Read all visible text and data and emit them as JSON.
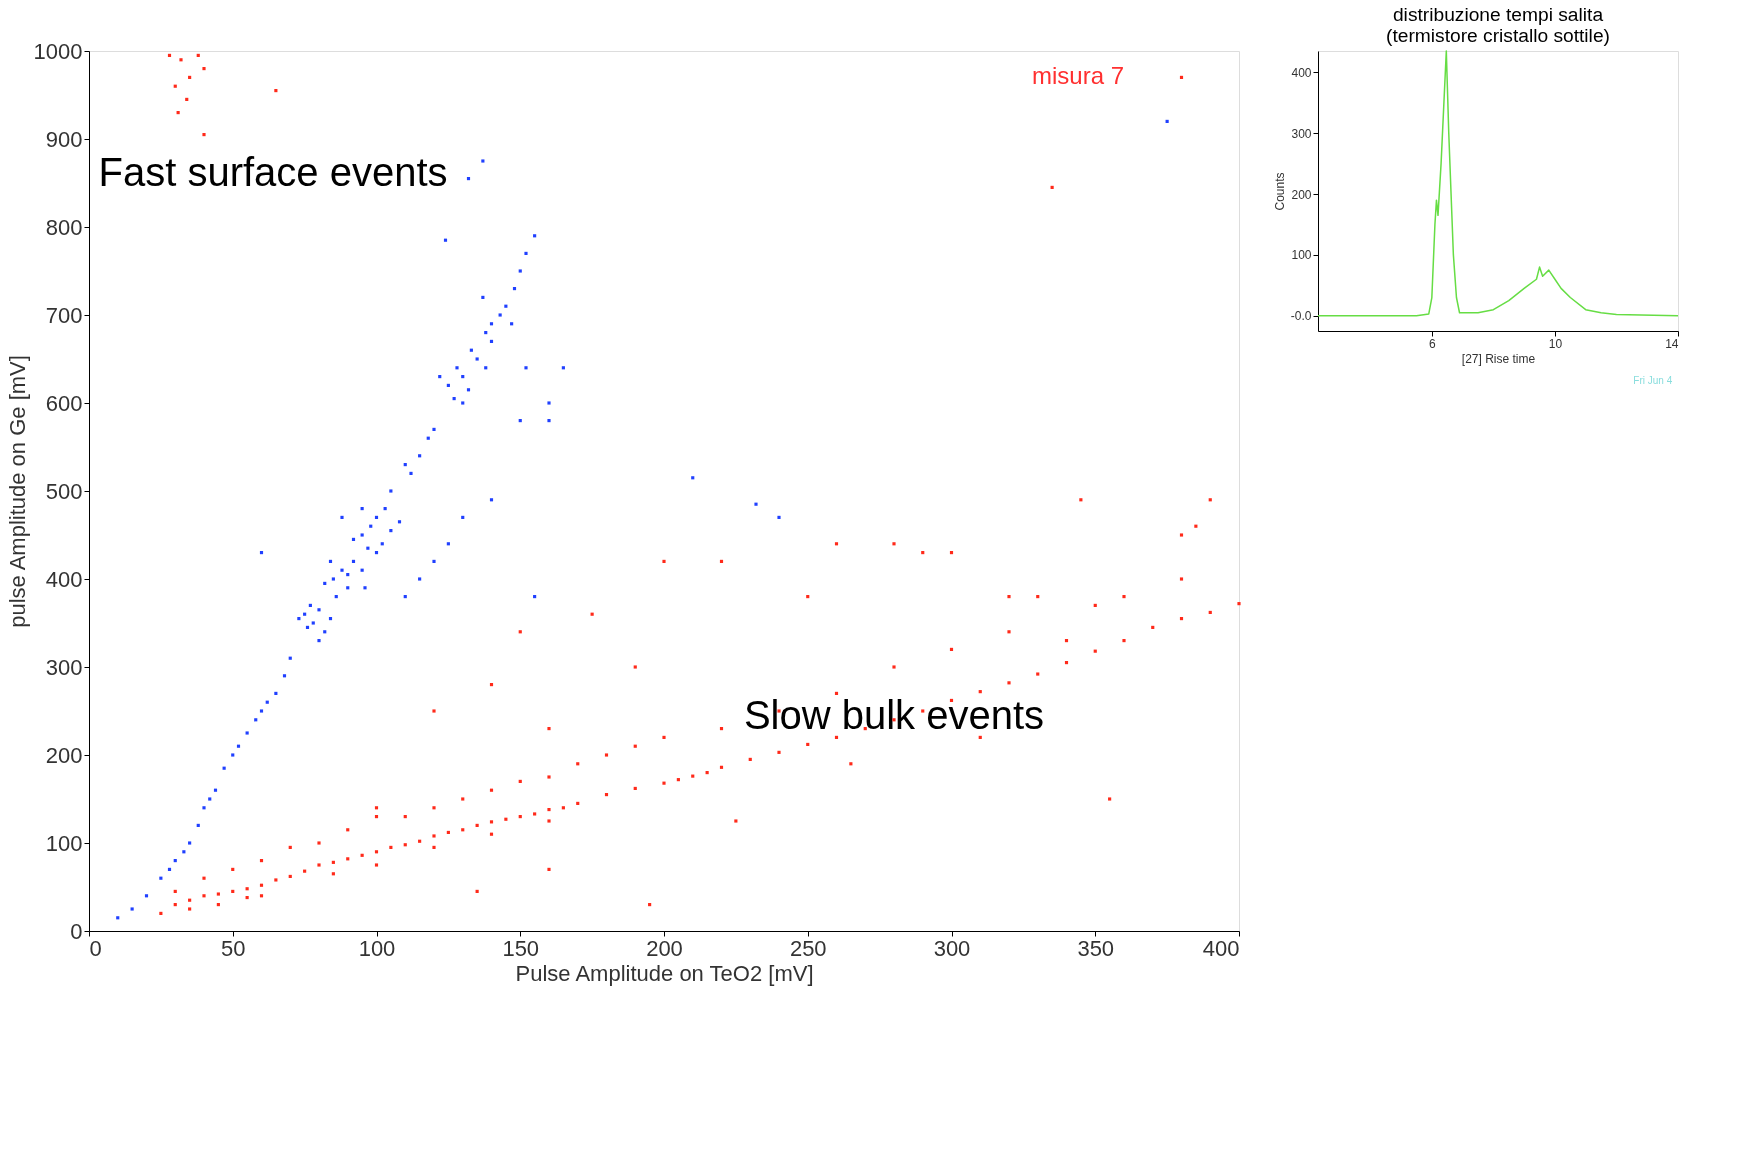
{
  "chart_data": [
    {
      "type": "scatter",
      "xlabel": "Pulse Amplitude on TeO2 [mV]",
      "ylabel": "pulse Amplitude on Ge [mV]",
      "marker": "square",
      "xlim": [
        0,
        400
      ],
      "ylim": [
        0,
        1000
      ],
      "xticks": [
        0,
        50,
        100,
        150,
        200,
        250,
        300,
        350,
        400
      ],
      "yticks": [
        0,
        100,
        200,
        300,
        400,
        500,
        600,
        700,
        800,
        900,
        1000
      ],
      "grid": false,
      "annotations": [
        "Fast surface events",
        "Slow bulk events",
        "misura 7"
      ],
      "series": [
        {
          "color": "#2040ff",
          "x": [
            125,
            128,
            130,
            132,
            135,
            127,
            133,
            138,
            122,
            130,
            140,
            140,
            145,
            148,
            150,
            143,
            152,
            147,
            138,
            155,
            137,
            124,
            132,
            137,
            152,
            160,
            165,
            150,
            110,
            115,
            118,
            120,
            105,
            112,
            160,
            95,
            98,
            100,
            102,
            105,
            97,
            92,
            108,
            103,
            100,
            85,
            88,
            90,
            92,
            86,
            95,
            82,
            90,
            96,
            84,
            75,
            78,
            80,
            82,
            77,
            73,
            84,
            80,
            76,
            70,
            68,
            65,
            60,
            58,
            55,
            50,
            47,
            44,
            40,
            38,
            35,
            30,
            25,
            20,
            15,
            10,
            42,
            52,
            62,
            33,
            28,
            120,
            125,
            130,
            140,
            155,
            115,
            60,
            110,
            95,
            88,
            240,
            375,
            232,
            210
          ],
          "values": [
            620,
            640,
            630,
            615,
            650,
            605,
            660,
            640,
            630,
            600,
            670,
            690,
            710,
            730,
            750,
            700,
            770,
            690,
            680,
            790,
            720,
            785,
            855,
            875,
            640,
            600,
            640,
            580,
            530,
            540,
            560,
            570,
            500,
            520,
            580,
            450,
            460,
            470,
            440,
            455,
            435,
            445,
            465,
            480,
            430,
            400,
            410,
            390,
            420,
            380,
            410,
            395,
            405,
            390,
            420,
            360,
            350,
            365,
            340,
            370,
            355,
            355,
            330,
            345,
            310,
            290,
            270,
            250,
            240,
            225,
            200,
            185,
            160,
            140,
            120,
            100,
            80,
            60,
            40,
            25,
            15,
            150,
            210,
            260,
            90,
            70,
            420,
            440,
            470,
            490,
            380,
            400,
            430,
            380,
            480,
            470,
            470,
            920,
            485,
            515
          ]
        },
        {
          "color": "#ff2a1a",
          "x": [
            25,
            30,
            35,
            40,
            45,
            50,
            55,
            60,
            65,
            70,
            75,
            80,
            85,
            90,
            95,
            100,
            105,
            110,
            115,
            120,
            125,
            130,
            135,
            140,
            145,
            150,
            155,
            160,
            165,
            170,
            180,
            190,
            200,
            205,
            210,
            215,
            220,
            230,
            240,
            250,
            260,
            270,
            280,
            290,
            300,
            310,
            320,
            330,
            340,
            350,
            360,
            370,
            380,
            390,
            400,
            35,
            45,
            55,
            60,
            85,
            100,
            120,
            140,
            160,
            30,
            40,
            50,
            60,
            70,
            80,
            90,
            100,
            110,
            120,
            130,
            140,
            150,
            160,
            170,
            180,
            190,
            200,
            220,
            240,
            260,
            280,
            300,
            320,
            350,
            380,
            150,
            175,
            200,
            220,
            250,
            260,
            280,
            300,
            320,
            330,
            340,
            360,
            380,
            385,
            390,
            345,
            290,
            190,
            160,
            140,
            120,
            100,
            195,
            160,
            135,
            225,
            310,
            355,
            265,
            30,
            32,
            35,
            28,
            38,
            34,
            31,
            40,
            65,
            335,
            380,
            40
          ],
          "values": [
            20,
            30,
            35,
            40,
            42,
            45,
            48,
            52,
            58,
            62,
            68,
            75,
            78,
            82,
            86,
            90,
            95,
            98,
            102,
            108,
            112,
            115,
            120,
            124,
            127,
            130,
            133,
            138,
            140,
            145,
            155,
            162,
            168,
            172,
            176,
            180,
            186,
            195,
            203,
            212,
            220,
            230,
            240,
            250,
            262,
            272,
            282,
            292,
            305,
            318,
            330,
            345,
            355,
            362,
            372,
            25,
            30,
            38,
            40,
            65,
            75,
            95,
            110,
            125,
            45,
            60,
            70,
            80,
            95,
            100,
            115,
            130,
            130,
            140,
            150,
            160,
            170,
            175,
            190,
            200,
            210,
            220,
            230,
            250,
            270,
            300,
            320,
            340,
            370,
            400,
            340,
            360,
            420,
            420,
            380,
            440,
            440,
            430,
            380,
            380,
            330,
            380,
            450,
            460,
            490,
            490,
            430,
            300,
            230,
            280,
            250,
            140,
            30,
            70,
            45,
            125,
            220,
            150,
            190,
            960,
            990,
            970,
            995,
            995,
            945,
            930,
            980,
            955,
            845,
            970,
            905
          ]
        }
      ]
    },
    {
      "type": "line",
      "title": "distribuzione tempi salita\n(termistore cristallo sottile)",
      "xlabel": "[27] Rise time",
      "ylabel": "Counts",
      "xlim": [
        2.3,
        14
      ],
      "ylim": [
        -25,
        435
      ],
      "xticks": [
        6,
        10,
        14
      ],
      "yticks": [
        {
          "value": 0,
          "label": "-0.0"
        },
        100,
        200,
        300,
        400
      ],
      "grid": false,
      "annotations": [
        "Fri Jun 4"
      ],
      "series": [
        {
          "color": "#66dd44",
          "x": [
            2.3,
            5.5,
            5.9,
            6.0,
            6.1,
            6.15,
            6.2,
            6.3,
            6.47,
            6.55,
            6.7,
            6.8,
            6.9,
            7.5,
            8,
            8.5,
            9,
            9.4,
            9.5,
            9.6,
            9.8,
            10,
            10.2,
            10.5,
            11,
            11.5,
            12,
            14
          ],
          "values": [
            0,
            0,
            3,
            30,
            150,
            190,
            165,
            250,
            435,
            300,
            100,
            30,
            5,
            5,
            10,
            25,
            45,
            60,
            80,
            65,
            75,
            60,
            45,
            30,
            10,
            5,
            2,
            0
          ]
        }
      ]
    }
  ]
}
